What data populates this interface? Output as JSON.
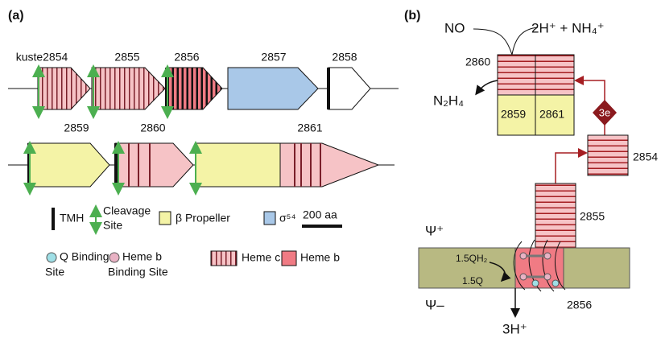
{
  "panel_a": {
    "label": "(a)",
    "genes": [
      "kuste2854",
      "2855",
      "2856",
      "2857",
      "2858",
      "2859",
      "2860",
      "2861"
    ],
    "legend": {
      "tmh": "TMH",
      "cleavage_1": "Cleavage",
      "cleavage_2": "Site",
      "propeller": "β Propeller",
      "sigma": "σ⁵⁴",
      "scale": "200 aa",
      "q_site_1": "Q Binding",
      "q_site_2": "Site",
      "heme_b_site_1": "Heme b",
      "heme_b_site_2": "Binding Site",
      "heme_c": "Heme c",
      "heme_b": "Heme b"
    }
  },
  "panel_b": {
    "label": "(b)",
    "no": "NO",
    "products": "2H⁺ + NH₄⁺",
    "hzs_2860": "2860",
    "hydrazine": "N₂H₄",
    "hzs_2859": "2859",
    "hzs_2861": "2861",
    "electrons": "3e",
    "c_2854": "2854",
    "c_2855": "2855",
    "psi_plus": "Ψ⁺",
    "psi_minus": "Ψ–",
    "qh2": "1.5QH₂",
    "q": "1.5Q",
    "c_2856": "2856",
    "protons": "3H⁺"
  }
}
